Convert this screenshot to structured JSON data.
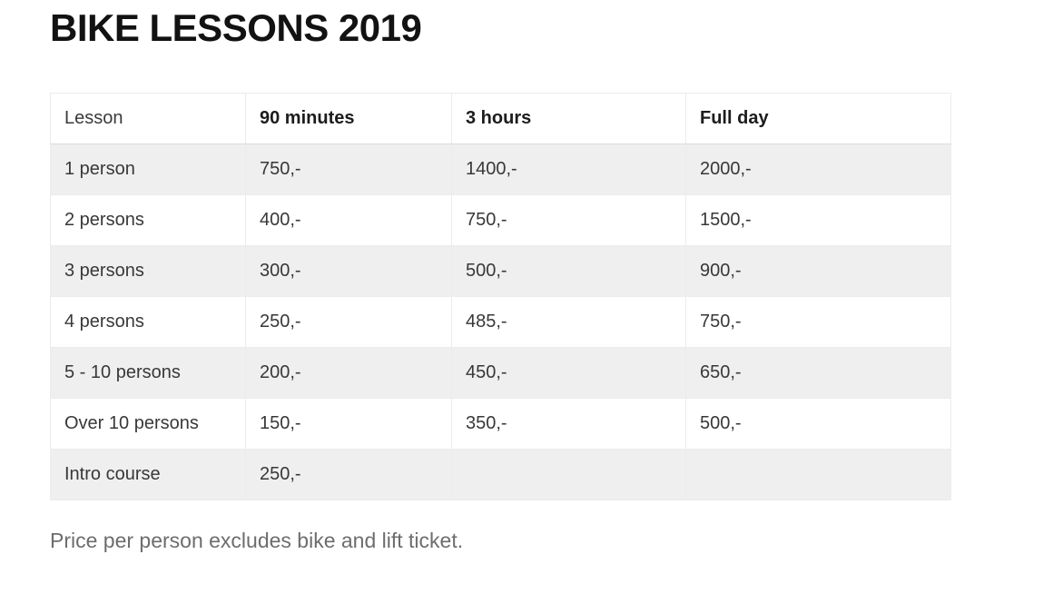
{
  "page": {
    "title": "BIKE LESSONS 2019",
    "footnote": "Price per person excludes bike and lift ticket."
  },
  "table": {
    "columns": [
      "Lesson",
      "90 minutes",
      "3 hours",
      "Full day"
    ],
    "rows": [
      {
        "label": "1 person",
        "values": [
          "750,-",
          "1400,-",
          "2000,-"
        ]
      },
      {
        "label": "2 persons",
        "values": [
          "400,-",
          "750,-",
          "1500,-"
        ]
      },
      {
        "label": "3 persons",
        "values": [
          "300,-",
          "500,-",
          "900,-"
        ]
      },
      {
        "label": "4 persons",
        "values": [
          "250,-",
          "485,-",
          "750,-"
        ]
      },
      {
        "label": "5 - 10 persons",
        "values": [
          "200,-",
          "450,-",
          "650,-"
        ]
      },
      {
        "label": "Over 10 persons",
        "values": [
          "150,-",
          "350,-",
          "500,-"
        ]
      },
      {
        "label": "Intro course",
        "values": [
          "250,-",
          "",
          ""
        ]
      }
    ]
  },
  "colors": {
    "title_text": "#121212",
    "body_text": "#383838",
    "header_bold_text": "#1c1c1c",
    "row_stripe": "#efefef",
    "cell_border": "#ececec",
    "header_bottom_border": "#dcdcdc",
    "footnote_text": "#6d6d6d",
    "background": "#ffffff"
  }
}
